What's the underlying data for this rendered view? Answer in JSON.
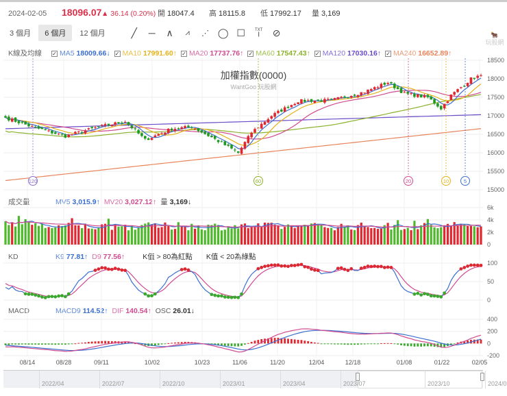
{
  "header": {
    "date": "2024-02-05",
    "price": "18096.07",
    "change": "▲ 36.14 (0.20%)",
    "open_label": "開",
    "open": "18047.4",
    "high_label": "高",
    "high": "18115.8",
    "low_label": "低",
    "low": "17992.17",
    "vol_label": "量",
    "vol": "3,169"
  },
  "ranges": [
    "3 個月",
    "6 個月",
    "12 個月"
  ],
  "active_range": "6 個月",
  "tools": [
    "line-tool",
    "horizontal-line-tool",
    "angle-tool",
    "abc-pattern-tool",
    "abcd-pattern-tool",
    "circle-tool",
    "rectangle-tool",
    "text-tool",
    "hide-drawings-tool"
  ],
  "tool_text_label": "TXT",
  "ma_legend": {
    "title": "K線及均線",
    "items": [
      {
        "name": "MA5",
        "value": "18009.66↓",
        "color": "#3a6fcf"
      },
      {
        "name": "MA10",
        "value": "17991.60↑",
        "color": "#e5b21a"
      },
      {
        "name": "MA20",
        "value": "17737.76↑",
        "color": "#d04a8f"
      },
      {
        "name": "MA60",
        "value": "17547.43↑",
        "color": "#8bb22a"
      },
      {
        "name": "MA120",
        "value": "17030.16↑",
        "color": "#6a4cc8"
      },
      {
        "name": "MA240",
        "value": "16652.89↑",
        "color": "#e8835a"
      }
    ]
  },
  "watermark": {
    "title": "加權指數(0000)",
    "sub": "WantGoo 玩股網",
    "logo": "玩股網"
  },
  "vol_legend": {
    "title": "成交量",
    "items": [
      {
        "name": "MV5",
        "value": "3,015.9↑",
        "color": "#3a6fcf"
      },
      {
        "name": "MV20",
        "value": "3,027.12↑",
        "color": "#d04a8f"
      },
      {
        "name": "量",
        "value": "3,169↓",
        "color": "#333"
      }
    ]
  },
  "kd_legend": {
    "title": "KD",
    "items": [
      {
        "name": "K9",
        "value": "77.81↑",
        "color": "#3a6fcf"
      },
      {
        "name": "D9",
        "value": "77.56↑",
        "color": "#d04a8f"
      }
    ],
    "note1": "K值 > 80為紅點",
    "note2": "K值 < 20為綠點"
  },
  "macd_legend": {
    "title": "MACD",
    "items": [
      {
        "name": "MACD9",
        "value": "114.52↑",
        "color": "#3a6fcf"
      },
      {
        "name": "DIF",
        "value": "140.54↑",
        "color": "#d04a8f"
      },
      {
        "name": "OSC",
        "value": "26.01↓",
        "color": "#333"
      }
    ]
  },
  "ma_markers": [
    "120",
    "60",
    "20",
    "10",
    "5"
  ],
  "navigator": {
    "labels": [
      "2022/04",
      "2022/07",
      "2022/10",
      "2023/01",
      "2023/04",
      "2023/07",
      "2023/10",
      "2024/01"
    ]
  },
  "chart_data": {
    "type": "candlestick",
    "price_axis": {
      "ticks": [
        "18500",
        "18000",
        "17500",
        "17000",
        "16500",
        "16000",
        "15500",
        "15000"
      ],
      "range": [
        15000,
        18500
      ]
    },
    "vol_axis": {
      "ticks": [
        "6k",
        "4k",
        "2k",
        "0"
      ],
      "range": [
        0,
        6000
      ]
    },
    "kd_axis": {
      "ticks": [
        "100",
        "50",
        "0"
      ],
      "range": [
        0,
        100
      ]
    },
    "macd_axis": {
      "ticks": [
        "400",
        "200",
        "0",
        "-200"
      ],
      "range": [
        -200,
        400
      ]
    },
    "x_ticks": [
      "08/14",
      "08/28",
      "09/11",
      "10/02",
      "10/23",
      "11/06",
      "11/20",
      "12/04",
      "12/18",
      "01/08",
      "01/22",
      "02/05"
    ],
    "close_keypoints": [
      [
        0,
        16950
      ],
      [
        8,
        16700
      ],
      [
        18,
        16450
      ],
      [
        28,
        16700
      ],
      [
        36,
        16850
      ],
      [
        42,
        16350
      ],
      [
        50,
        16650
      ],
      [
        56,
        16700
      ],
      [
        62,
        16420
      ],
      [
        70,
        16000
      ],
      [
        74,
        16550
      ],
      [
        80,
        17000
      ],
      [
        88,
        17400
      ],
      [
        98,
        17420
      ],
      [
        108,
        17650
      ],
      [
        115,
        17900
      ],
      [
        120,
        17600
      ],
      [
        127,
        17500
      ],
      [
        131,
        17200
      ],
      [
        134,
        17550
      ],
      [
        140,
        18000
      ],
      [
        143,
        18096.07
      ]
    ],
    "ma120_range": [
      16650,
      17030.16
    ],
    "ma240_range": [
      15250,
      16652.89
    ]
  }
}
